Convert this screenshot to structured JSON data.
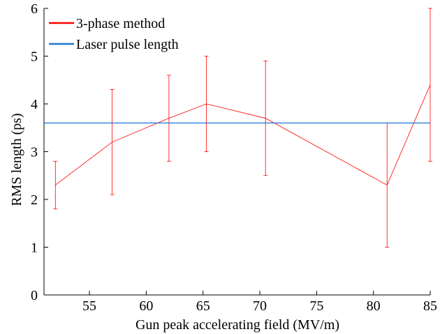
{
  "chart_data": {
    "type": "line",
    "title": "",
    "xlabel": "Gun peak accelerating field (MV/m)",
    "ylabel": "RMS length (ps)",
    "xlim": [
      51,
      85
    ],
    "ylim": [
      0,
      6
    ],
    "xticks": [
      55,
      60,
      65,
      70,
      75,
      80,
      85
    ],
    "yticks": [
      0,
      1,
      2,
      3,
      4,
      5,
      6
    ],
    "grid": false,
    "legend_position": "top-left",
    "series": [
      {
        "name": "3-phase method",
        "color": "#ff0000",
        "x": [
          52,
          57,
          62,
          65.3,
          70.5,
          81.2,
          85
        ],
        "y": [
          2.3,
          3.2,
          3.7,
          4.0,
          3.7,
          2.3,
          4.4
        ],
        "err_low": [
          1.8,
          2.1,
          2.8,
          3.0,
          2.5,
          1.0,
          2.8
        ],
        "err_high": [
          2.8,
          4.3,
          4.6,
          5.0,
          4.9,
          3.6,
          6.0
        ]
      },
      {
        "name": "Laser pulse length",
        "color": "#1f77d4",
        "x": [
          51,
          85
        ],
        "y": [
          3.6,
          3.6
        ]
      }
    ]
  }
}
